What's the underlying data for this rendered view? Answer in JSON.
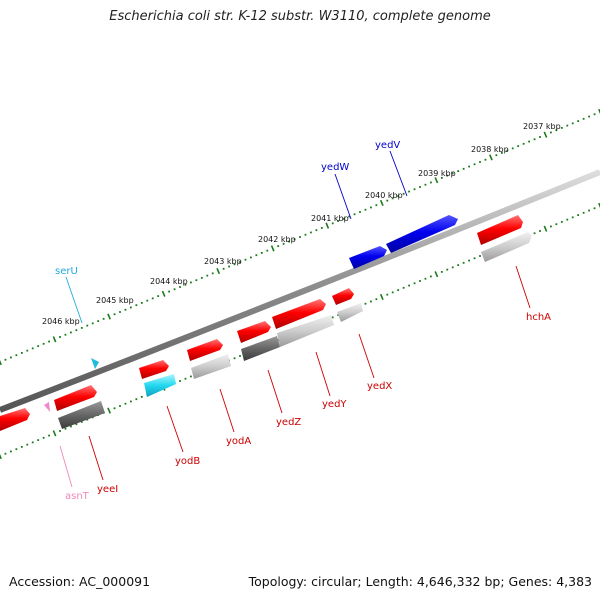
{
  "title": "Escherichia coli str. K-12 substr. W3110, complete genome",
  "footer": {
    "accession": "Accession: AC_000091",
    "summary": "Topology: circular; Length: 4,646,332 bp; Genes: 4,383"
  },
  "colors": {
    "backbone": "#8a8a8a",
    "tick": "#1a7a1a",
    "coding_gene": "#ff0000",
    "rna_gene": "#0000ff",
    "trna_gene": "#33ccee",
    "pink_rna_gene": "#ee88cc",
    "gene_shadow_light": "#c8c8c8",
    "gene_shadow_dark": "#666666",
    "label_red": "#cc0000",
    "label_blue": "#0000cc",
    "label_cyan": "#22aadd",
    "label_pink": "#ee88bb",
    "kbp_label": "#111111"
  },
  "kbp_labels": [
    "2037 kbp",
    "2038 kbp",
    "2039 kbp",
    "2040 kbp",
    "2041 kbp",
    "2042 kbp",
    "2043 kbp",
    "2044 kbp",
    "2045 kbp",
    "2046 kbp"
  ],
  "gene_labels": {
    "hchA": "hchA",
    "yedX": "yedX",
    "yedY": "yedY",
    "yedZ": "yedZ",
    "yodA": "yodA",
    "yodB": "yodB",
    "yeeI": "yeeI",
    "asnT": "asnT",
    "serU": "serU",
    "yedW": "yedW",
    "yedV": "yedV"
  }
}
